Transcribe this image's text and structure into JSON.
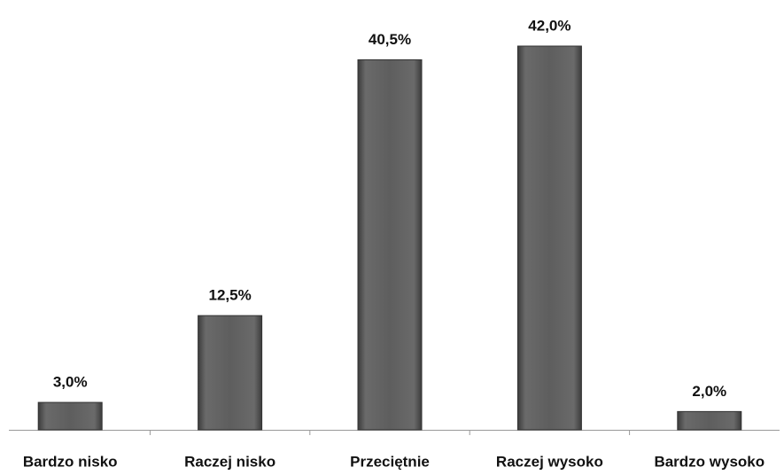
{
  "chart_data": {
    "type": "bar",
    "categories": [
      "Bardzo nisko",
      "Raczej nisko",
      "Przeciętnie",
      "Raczej wysoko",
      "Bardzo wysoko"
    ],
    "values": [
      3.0,
      12.5,
      40.5,
      42.0,
      2.0
    ],
    "value_labels": [
      "3,0%",
      "12,5%",
      "40,5%",
      "42,0%",
      "2,0%"
    ],
    "color": "#5a5a5a"
  }
}
